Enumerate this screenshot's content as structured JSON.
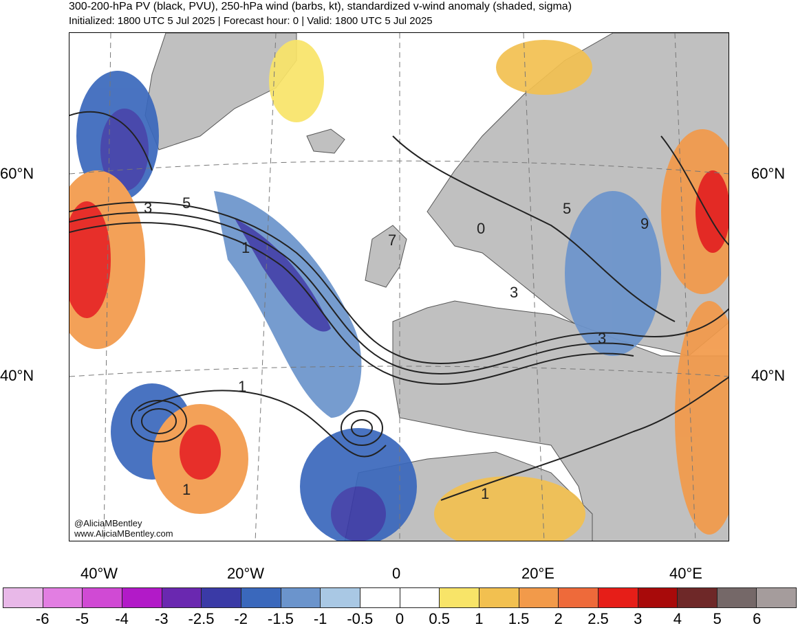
{
  "title": "300-200-hPa PV (black, PVU), 250-hPa wind (barbs, kt), standardized v-wind anomaly (shaded, sigma)",
  "subtitle": "Initialized: 1800 UTC 5 Jul 2025 | Forecast hour: 0 | Valid: 1800 UTC 5 Jul 2025",
  "map": {
    "lat_labels": {
      "left_60": "60°N",
      "right_60": "60°N",
      "left_40": "40°N",
      "right_40": "40°N"
    },
    "lon_labels": [
      "40°W",
      "20°W",
      "0",
      "20°E",
      "40°E"
    ],
    "contour_labels": [
      "3",
      "5",
      "1",
      "7",
      "3",
      "5",
      "9",
      "3",
      "1",
      "1",
      "1",
      "0"
    ],
    "credit_handle": "@AliciaMBentley",
    "credit_site": "www.AliciaMBentley.com",
    "colors": {
      "land": "#c0c0c0",
      "ocean": "#ffffff",
      "contour": "#222222"
    }
  },
  "colorbar": {
    "colors": [
      "#e8b8e8",
      "#e27ee2",
      "#d04ad4",
      "#b21ac8",
      "#6a28b0",
      "#3a3aa6",
      "#3a68bc",
      "#6b94cc",
      "#a9c8e4",
      "#ffffff",
      "#ffffff",
      "#f8e468",
      "#f2c050",
      "#f29a4a",
      "#ee6a3a",
      "#e61e18",
      "#a80a0a",
      "#6e2828",
      "#756868",
      "#a59c9c"
    ],
    "labels": [
      "-6",
      "-5",
      "-4",
      "-3",
      "-2.5",
      "-2",
      "-1.5",
      "-1",
      "-0.5",
      "0",
      "0.5",
      "1",
      "1.5",
      "2",
      "2.5",
      "3",
      "4",
      "5",
      "6"
    ]
  }
}
